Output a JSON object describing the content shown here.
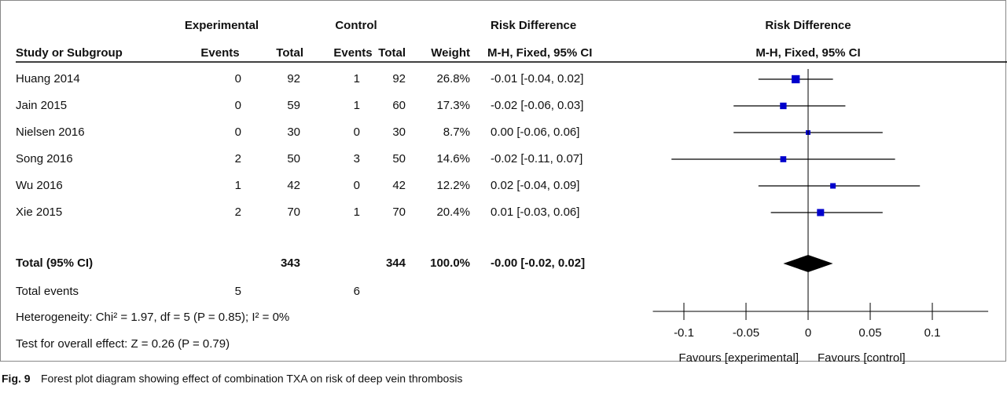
{
  "chart_data": {
    "type": "forest",
    "header_groups": [
      "Experimental",
      "Control",
      "Risk Difference",
      "Risk Difference"
    ],
    "columns": [
      "Study or Subgroup",
      "Events",
      "Total",
      "Events",
      "Total",
      "Weight",
      "M-H, Fixed, 95% CI",
      "M-H, Fixed, 95% CI"
    ],
    "studies": [
      {
        "name": "Huang 2014",
        "exp_events": 0,
        "exp_total": 92,
        "ctrl_events": 1,
        "ctrl_total": 92,
        "weight": 26.8,
        "weight_label": "26.8%",
        "rd": -0.01,
        "ci": [
          -0.04,
          0.02
        ],
        "rd_label": "-0.01 [-0.04, 0.02]"
      },
      {
        "name": "Jain 2015",
        "exp_events": 0,
        "exp_total": 59,
        "ctrl_events": 1,
        "ctrl_total": 60,
        "weight": 17.3,
        "weight_label": "17.3%",
        "rd": -0.02,
        "ci": [
          -0.06,
          0.03
        ],
        "rd_label": "-0.02 [-0.06, 0.03]"
      },
      {
        "name": "Nielsen 2016",
        "exp_events": 0,
        "exp_total": 30,
        "ctrl_events": 0,
        "ctrl_total": 30,
        "weight": 8.7,
        "weight_label": "8.7%",
        "rd": 0,
        "ci": [
          -0.06,
          0.06
        ],
        "rd_label": "0.00 [-0.06, 0.06]"
      },
      {
        "name": "Song 2016",
        "exp_events": 2,
        "exp_total": 50,
        "ctrl_events": 3,
        "ctrl_total": 50,
        "weight": 14.6,
        "weight_label": "14.6%",
        "rd": -0.02,
        "ci": [
          -0.11,
          0.07
        ],
        "rd_label": "-0.02 [-0.11, 0.07]"
      },
      {
        "name": "Wu 2016",
        "exp_events": 1,
        "exp_total": 42,
        "ctrl_events": 0,
        "ctrl_total": 42,
        "weight": 12.2,
        "weight_label": "12.2%",
        "rd": 0.02,
        "ci": [
          -0.04,
          0.09
        ],
        "rd_label": "0.02 [-0.04, 0.09]"
      },
      {
        "name": "Xie 2015",
        "exp_events": 2,
        "exp_total": 70,
        "ctrl_events": 1,
        "ctrl_total": 70,
        "weight": 20.4,
        "weight_label": "20.4%",
        "rd": 0.01,
        "ci": [
          -0.03,
          0.06
        ],
        "rd_label": "0.01 [-0.03, 0.06]"
      }
    ],
    "total": {
      "name": "Total (95% CI)",
      "exp_total": 343,
      "ctrl_total": 344,
      "weight": 100,
      "weight_label": "100.0%",
      "rd": 0,
      "ci": [
        -0.02,
        0.02
      ],
      "rd_label": "-0.00 [-0.02, 0.02]"
    },
    "total_events": {
      "name": "Total events",
      "exp_events": 5,
      "ctrl_events": 6
    },
    "heterogeneity": "Heterogeneity: Chi² = 1.97, df = 5 (P = 0.85); I² = 0%",
    "overall_effect": "Test for overall effect: Z = 0.26 (P = 0.79)",
    "xlim": [
      -0.125,
      0.145
    ],
    "xticks": [
      -0.1,
      -0.05,
      0,
      0.05,
      0.1
    ],
    "favours_left": "Favours [experimental]",
    "favours_right": "Favours [control]",
    "square_color": "#0000cc",
    "caption_label": "Fig. 9",
    "caption": "Forest plot diagram showing effect of combination TXA on risk of deep vein thrombosis"
  }
}
